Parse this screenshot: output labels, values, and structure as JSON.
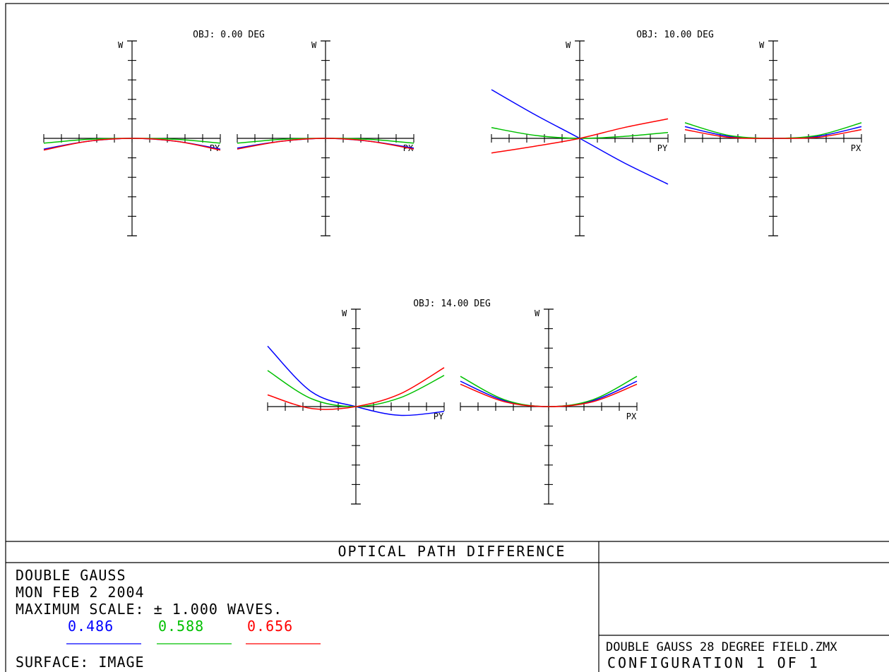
{
  "chart_data": {
    "type": "line",
    "title": "OPTICAL PATH DIFFERENCE",
    "ylim": [
      -1,
      1
    ],
    "xlim": [
      -1,
      1
    ],
    "wavelength_colors": {
      "0.486": "#0000ff",
      "0.588": "#00c000",
      "0.656": "#ff0000"
    },
    "fields": [
      {
        "label": "OBJ: 0.00 DEG",
        "plots": [
          {
            "xlabel": "PY",
            "ylabel": "W",
            "series": [
              {
                "name": "0.486",
                "color": "#0000ff",
                "x": [
                  -1,
                  -0.5,
                  0,
                  0.5,
                  1
                ],
                "y": [
                  -0.11,
                  -0.03,
                  0,
                  -0.03,
                  -0.11
                ]
              },
              {
                "name": "0.588",
                "color": "#00c000",
                "x": [
                  -1,
                  -0.5,
                  0,
                  0.5,
                  1
                ],
                "y": [
                  -0.05,
                  -0.01,
                  0,
                  -0.01,
                  -0.05
                ]
              },
              {
                "name": "0.656",
                "color": "#ff0000",
                "x": [
                  -1,
                  -0.5,
                  0,
                  0.5,
                  1
                ],
                "y": [
                  -0.12,
                  -0.03,
                  0,
                  -0.03,
                  -0.12
                ]
              }
            ]
          },
          {
            "xlabel": "PX",
            "ylabel": "W",
            "series": [
              {
                "name": "0.486",
                "color": "#0000ff",
                "x": [
                  -1,
                  -0.5,
                  0,
                  0.5,
                  1
                ],
                "y": [
                  -0.1,
                  -0.03,
                  0,
                  -0.03,
                  -0.1
                ]
              },
              {
                "name": "0.588",
                "color": "#00c000",
                "x": [
                  -1,
                  -0.5,
                  0,
                  0.5,
                  1
                ],
                "y": [
                  -0.05,
                  -0.01,
                  0,
                  -0.01,
                  -0.05
                ]
              },
              {
                "name": "0.656",
                "color": "#ff0000",
                "x": [
                  -1,
                  -0.5,
                  0,
                  0.5,
                  1
                ],
                "y": [
                  -0.11,
                  -0.03,
                  0,
                  -0.03,
                  -0.11
                ]
              }
            ]
          }
        ]
      },
      {
        "label": "OBJ: 10.00 DEG",
        "plots": [
          {
            "xlabel": "PY",
            "ylabel": "W",
            "series": [
              {
                "name": "0.486",
                "color": "#0000ff",
                "x": [
                  -1,
                  -0.5,
                  0,
                  0.5,
                  1
                ],
                "y": [
                  0.5,
                  0.24,
                  0,
                  -0.25,
                  -0.47
                ]
              },
              {
                "name": "0.588",
                "color": "#00c000",
                "x": [
                  -1,
                  -0.5,
                  0,
                  0.5,
                  1
                ],
                "y": [
                  0.11,
                  0.03,
                  0,
                  0.02,
                  0.06
                ]
              },
              {
                "name": "0.656",
                "color": "#ff0000",
                "x": [
                  -1,
                  -0.5,
                  0,
                  0.5,
                  1
                ],
                "y": [
                  -0.15,
                  -0.08,
                  0,
                  0.11,
                  0.2
                ]
              }
            ]
          },
          {
            "xlabel": "PX",
            "ylabel": "W",
            "series": [
              {
                "name": "0.486",
                "color": "#0000ff",
                "x": [
                  -1,
                  -0.5,
                  0,
                  0.5,
                  1
                ],
                "y": [
                  0.12,
                  0.02,
                  0,
                  0.02,
                  0.12
                ]
              },
              {
                "name": "0.588",
                "color": "#00c000",
                "x": [
                  -1,
                  -0.5,
                  0,
                  0.5,
                  1
                ],
                "y": [
                  0.16,
                  0.03,
                  0,
                  0.03,
                  0.16
                ]
              },
              {
                "name": "0.656",
                "color": "#ff0000",
                "x": [
                  -1,
                  -0.5,
                  0,
                  0.5,
                  1
                ],
                "y": [
                  0.09,
                  0.01,
                  0,
                  0.01,
                  0.09
                ]
              }
            ]
          }
        ]
      },
      {
        "label": "OBJ: 14.00 DEG",
        "plots": [
          {
            "xlabel": "PY",
            "ylabel": "W",
            "series": [
              {
                "name": "0.486",
                "color": "#0000ff",
                "x": [
                  -1,
                  -0.5,
                  0,
                  0.5,
                  1
                ],
                "y": [
                  0.62,
                  0.15,
                  0,
                  -0.09,
                  -0.05
                ]
              },
              {
                "name": "0.588",
                "color": "#00c000",
                "x": [
                  -1,
                  -0.5,
                  0,
                  0.5,
                  1
                ],
                "y": [
                  0.37,
                  0.08,
                  0,
                  0.09,
                  0.32
                ]
              },
              {
                "name": "0.656",
                "color": "#ff0000",
                "x": [
                  -1,
                  -0.5,
                  0,
                  0.5,
                  1
                ],
                "y": [
                  0.12,
                  -0.02,
                  0,
                  0.13,
                  0.4
                ]
              }
            ]
          },
          {
            "xlabel": "PX",
            "ylabel": "W",
            "series": [
              {
                "name": "0.486",
                "color": "#0000ff",
                "x": [
                  -1,
                  -0.5,
                  0,
                  0.5,
                  1
                ],
                "y": [
                  0.26,
                  0.06,
                  0,
                  0.06,
                  0.26
                ]
              },
              {
                "name": "0.588",
                "color": "#00c000",
                "x": [
                  -1,
                  -0.5,
                  0,
                  0.5,
                  1
                ],
                "y": [
                  0.31,
                  0.07,
                  0,
                  0.07,
                  0.31
                ]
              },
              {
                "name": "0.656",
                "color": "#ff0000",
                "x": [
                  -1,
                  -0.5,
                  0,
                  0.5,
                  1
                ],
                "y": [
                  0.23,
                  0.05,
                  0,
                  0.05,
                  0.23
                ]
              }
            ]
          }
        ]
      }
    ]
  },
  "footer": {
    "title": "OPTICAL PATH DIFFERENCE",
    "lens_name": "DOUBLE GAUSS",
    "date": "MON FEB 2 2004",
    "max_scale": "MAXIMUM SCALE: ± 1.000 WAVES.",
    "wavelengths": [
      {
        "label": "0.486",
        "color": "#0000ff"
      },
      {
        "label": "0.588",
        "color": "#00c000"
      },
      {
        "label": "0.656",
        "color": "#ff0000"
      }
    ],
    "surface": "SURFACE: IMAGE",
    "file_name": "DOUBLE GAUSS 28 DEGREE FIELD.ZMX",
    "configuration": "CONFIGURATION 1 OF 1"
  }
}
